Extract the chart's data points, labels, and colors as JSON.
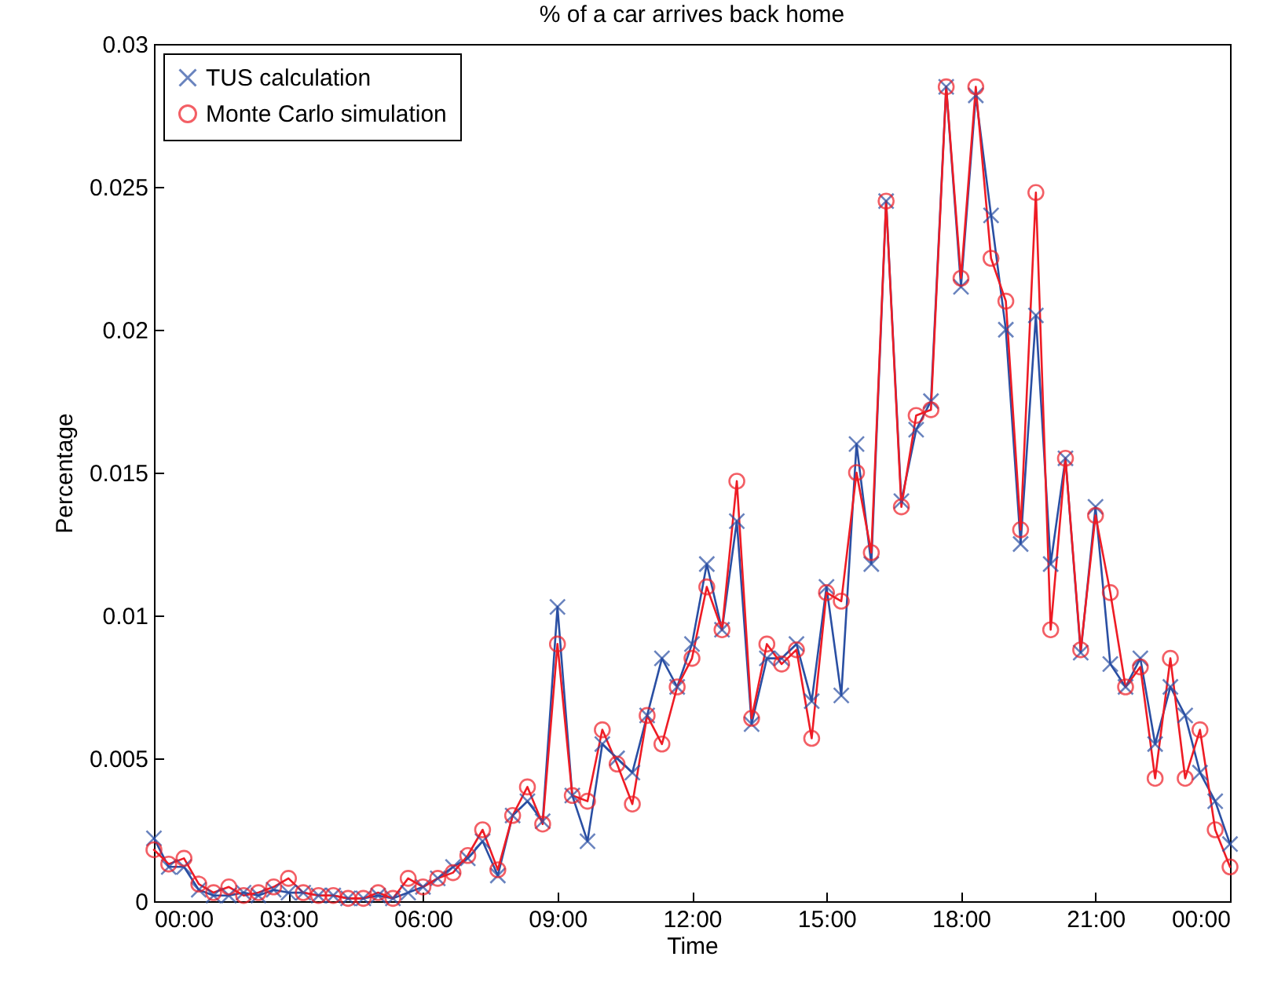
{
  "chart_data": {
    "type": "line",
    "title": "% of a car arrives back home",
    "xlabel": "Time",
    "ylabel": "Percentage",
    "x": [
      0,
      0.33,
      0.67,
      1,
      1.33,
      1.67,
      2,
      2.33,
      2.67,
      3,
      3.33,
      3.67,
      4,
      4.33,
      4.67,
      5,
      5.33,
      5.67,
      6,
      6.33,
      6.67,
      7,
      7.33,
      7.67,
      8,
      8.33,
      8.67,
      9,
      9.33,
      9.67,
      10,
      10.33,
      10.67,
      11,
      11.33,
      11.67,
      12,
      12.33,
      12.67,
      13,
      13.33,
      13.67,
      14,
      14.33,
      14.67,
      15,
      15.33,
      15.67,
      16,
      16.33,
      16.67,
      17,
      17.33,
      17.67,
      18,
      18.33,
      18.67,
      19,
      19.33,
      19.67,
      20,
      20.33,
      20.67,
      21,
      21.33,
      21.67,
      22,
      22.33,
      22.67,
      23,
      23.33,
      23.67,
      24
    ],
    "series": [
      {
        "name": "TUS calculation",
        "color": "#2a4fa3",
        "marker": "cross",
        "values": [
          0.0022,
          0.0012,
          0.0012,
          0.0004,
          0.0002,
          0.0002,
          0.0003,
          0.0002,
          0.0004,
          0.0003,
          0.0003,
          0.0002,
          0.0002,
          0.0001,
          0.0001,
          0.0002,
          0.0001,
          0.0003,
          0.0005,
          0.0008,
          0.0012,
          0.0015,
          0.0021,
          0.0009,
          0.003,
          0.0035,
          0.0028,
          0.0103,
          0.0037,
          0.0021,
          0.0055,
          0.005,
          0.0045,
          0.0065,
          0.0085,
          0.0075,
          0.009,
          0.0118,
          0.0095,
          0.0133,
          0.0062,
          0.0085,
          0.0085,
          0.009,
          0.007,
          0.011,
          0.0072,
          0.016,
          0.0118,
          0.0245,
          0.014,
          0.0165,
          0.0175,
          0.0285,
          0.0215,
          0.0282,
          0.024,
          0.02,
          0.0125,
          0.0205,
          0.0118,
          0.0155,
          0.0087,
          0.0138,
          0.0083,
          0.0075,
          0.0085,
          0.0055,
          0.0075,
          0.0065,
          0.0045,
          0.0035,
          0.002
        ]
      },
      {
        "name": "Monte Carlo simulation",
        "color": "#ee1c25",
        "marker": "circle",
        "values": [
          0.0018,
          0.0013,
          0.0015,
          0.0006,
          0.0003,
          0.0005,
          0.0002,
          0.0003,
          0.0005,
          0.0008,
          0.0003,
          0.0002,
          0.0002,
          0.0001,
          0.0001,
          0.0003,
          0.0001,
          0.0008,
          0.0005,
          0.0008,
          0.001,
          0.0016,
          0.0025,
          0.0011,
          0.003,
          0.004,
          0.0027,
          0.009,
          0.0037,
          0.0035,
          0.006,
          0.0048,
          0.0034,
          0.0065,
          0.0055,
          0.0075,
          0.0085,
          0.011,
          0.0095,
          0.0147,
          0.0064,
          0.009,
          0.0083,
          0.0088,
          0.0057,
          0.0108,
          0.0105,
          0.015,
          0.0122,
          0.0245,
          0.0138,
          0.017,
          0.0172,
          0.0285,
          0.0218,
          0.0285,
          0.0225,
          0.021,
          0.013,
          0.0248,
          0.0095,
          0.0155,
          0.0088,
          0.0135,
          0.0108,
          0.0075,
          0.0082,
          0.0043,
          0.0085,
          0.0043,
          0.006,
          0.0025,
          0.0012
        ]
      }
    ],
    "xlim": [
      0,
      24
    ],
    "xticks": [
      {
        "value": 0,
        "label": "00:00"
      },
      {
        "value": 3,
        "label": "03:00"
      },
      {
        "value": 6,
        "label": "06:00"
      },
      {
        "value": 9,
        "label": "09:00"
      },
      {
        "value": 12,
        "label": "12:00"
      },
      {
        "value": 15,
        "label": "15:00"
      },
      {
        "value": 18,
        "label": "18:00"
      },
      {
        "value": 21,
        "label": "21:00"
      },
      {
        "value": 24,
        "label": "00:00"
      }
    ],
    "ylim": [
      0,
      0.03
    ],
    "yticks": [
      0,
      0.005,
      0.01,
      0.015,
      0.02,
      0.025,
      0.03
    ],
    "legend": "top left",
    "line_style": "solid"
  }
}
